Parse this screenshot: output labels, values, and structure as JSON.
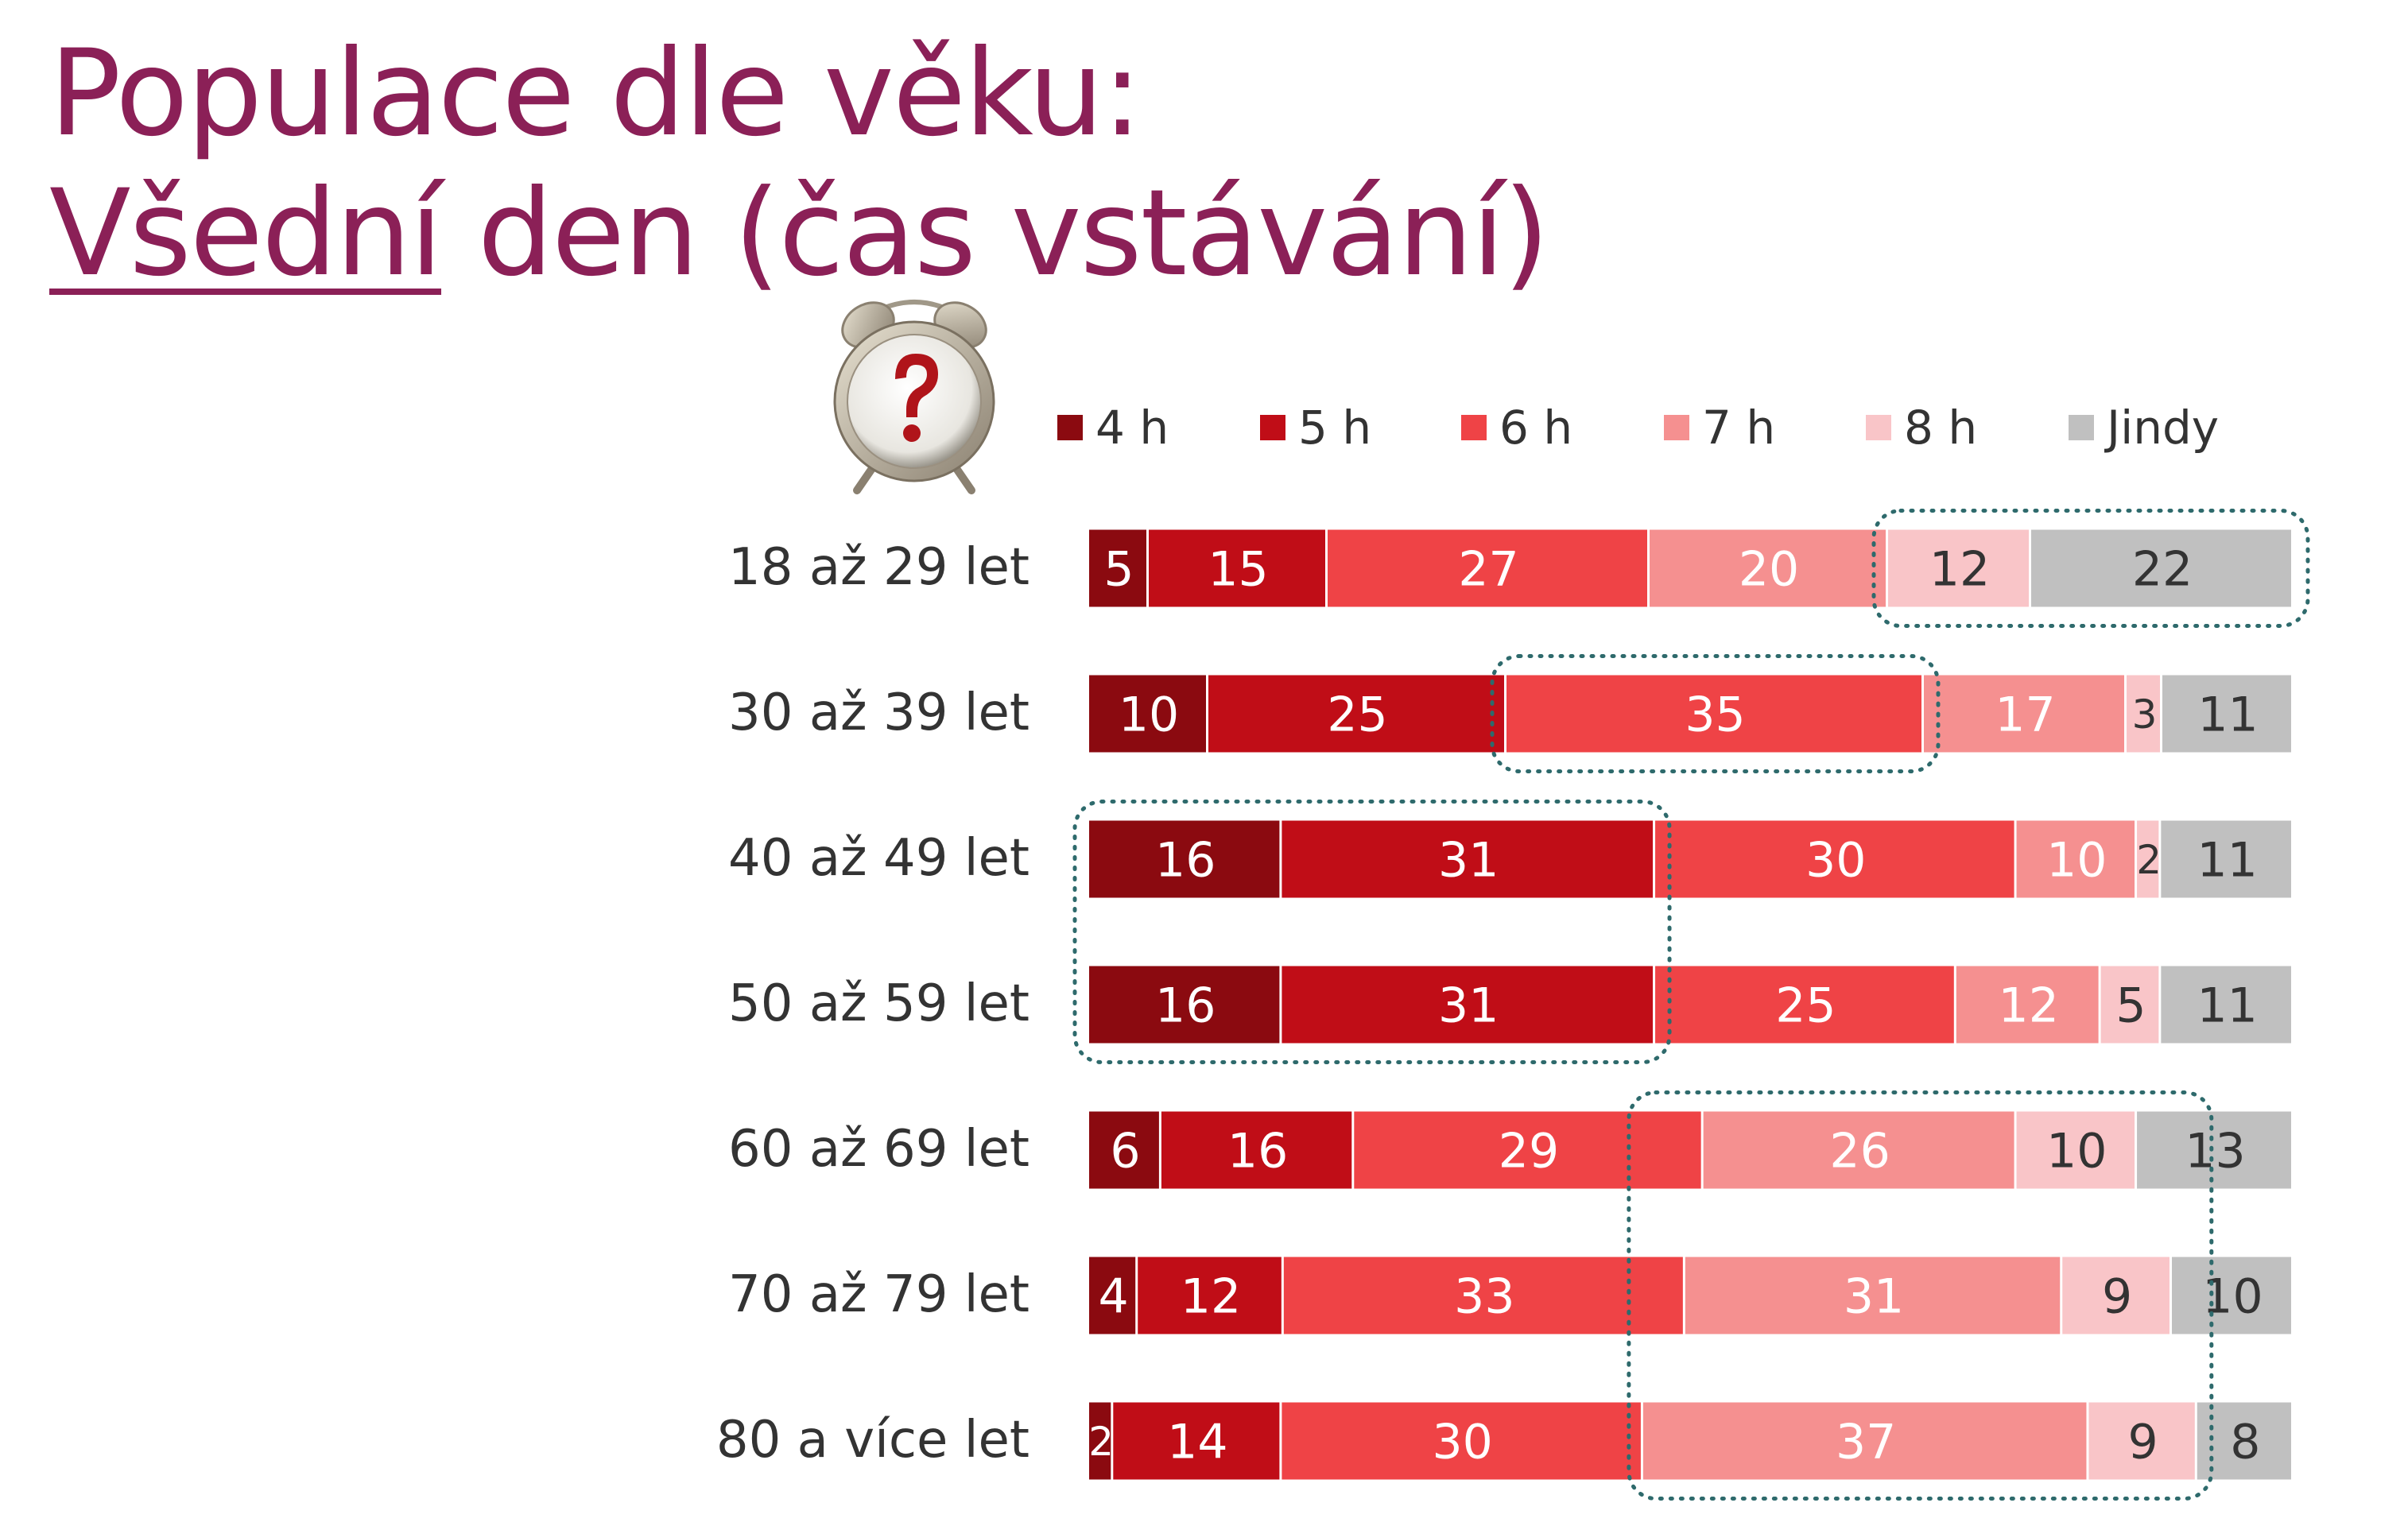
{
  "title": {
    "line1": "Populace dle věku:",
    "line2_underlined": "Všední",
    "line2_rest": " den (čas vstávání)"
  },
  "icons": {
    "clock": "alarm-clock-question-icon"
  },
  "colors": {
    "4 h": "#8b0a10",
    "5 h": "#c00d17",
    "6 h": "#ef4346",
    "7 h": "#f59090",
    "8 h": "#f9c5c8",
    "Jindy": "#c0c0c0",
    "title": "#8b2057",
    "highlight": "#2e6a6c"
  },
  "chart_data": {
    "type": "bar",
    "orientation": "horizontal",
    "stacked": true,
    "legend_position": "top",
    "categories": [
      "18 až 29 let",
      "30 až 39 let",
      "40 až 49 let",
      "50 až 59 let",
      "60 až 69 let",
      "70 až 79 let",
      "80 a více let"
    ],
    "series": [
      {
        "name": "4 h",
        "values": [
          5,
          10,
          16,
          16,
          6,
          4,
          2
        ]
      },
      {
        "name": "5 h",
        "values": [
          15,
          25,
          31,
          31,
          16,
          12,
          14
        ]
      },
      {
        "name": "6 h",
        "values": [
          27,
          35,
          30,
          25,
          29,
          33,
          30
        ]
      },
      {
        "name": "7 h",
        "values": [
          20,
          17,
          10,
          12,
          26,
          31,
          37
        ]
      },
      {
        "name": "8 h",
        "values": [
          12,
          3,
          2,
          5,
          10,
          9,
          9
        ]
      },
      {
        "name": "Jindy",
        "values": [
          22,
          11,
          11,
          11,
          13,
          10,
          8
        ]
      }
    ],
    "highlights": [
      {
        "rows": [
          "18 až 29 let"
        ],
        "series": [
          "8 h",
          "Jindy"
        ]
      },
      {
        "rows": [
          "30 až 39 let"
        ],
        "series": [
          "6 h"
        ]
      },
      {
        "rows": [
          "40 až 49 let",
          "50 až 59 let"
        ],
        "series": [
          "4 h",
          "5 h"
        ]
      },
      {
        "rows": [
          "60 až 69 let",
          "70 až 79 let",
          "80 a více let"
        ],
        "series": [
          "7 h",
          "8 h"
        ]
      }
    ]
  }
}
